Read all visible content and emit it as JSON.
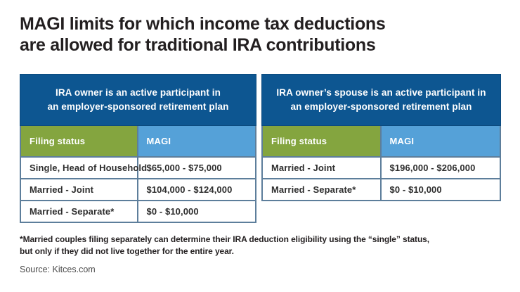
{
  "title": {
    "line1": "MAGI limits for which income tax deductions",
    "line2": "are allowed for traditional IRA contributions"
  },
  "chart_data": [
    {
      "type": "table",
      "title": "IRA owner is an active participant in an employer-sponsored retirement plan",
      "title_lines": [
        "IRA owner is an active participant in",
        "an employer-sponsored retirement plan"
      ],
      "columns": [
        "Filing status",
        "MAGI"
      ],
      "rows": [
        [
          "Single, Head of Household",
          "$65,000 - $75,000"
        ],
        [
          "Married - Joint",
          "$104,000 - $124,000"
        ],
        [
          "Married - Separate*",
          "$0 - $10,000"
        ]
      ]
    },
    {
      "type": "table",
      "title": "IRA owner’s spouse is an active participant in an employer-sponsored retirement plan",
      "title_lines": [
        "IRA owner’s spouse is an active participant in",
        "an employer-sponsored retirement plan"
      ],
      "columns": [
        "Filing status",
        "MAGI"
      ],
      "rows": [
        [
          "Married - Joint",
          "$196,000 - $206,000"
        ],
        [
          "Married - Separate*",
          "$0 - $10,000"
        ]
      ]
    }
  ],
  "footnote": {
    "line1": "*Married couples filing separately can determine their IRA deduction eligibility using the “single” status,",
    "line2": "but only if they did not live together for the entire year."
  },
  "source": "Source: Kitces.com",
  "colors": {
    "header_blue": "#0d5691",
    "magi_blue": "#55a1d8",
    "filing_green": "#84a53f",
    "border_steel": "#5d7e9b",
    "band_border": "#0c4a7e",
    "text_dark": "#231f20",
    "text_source": "#4a4a4a"
  }
}
